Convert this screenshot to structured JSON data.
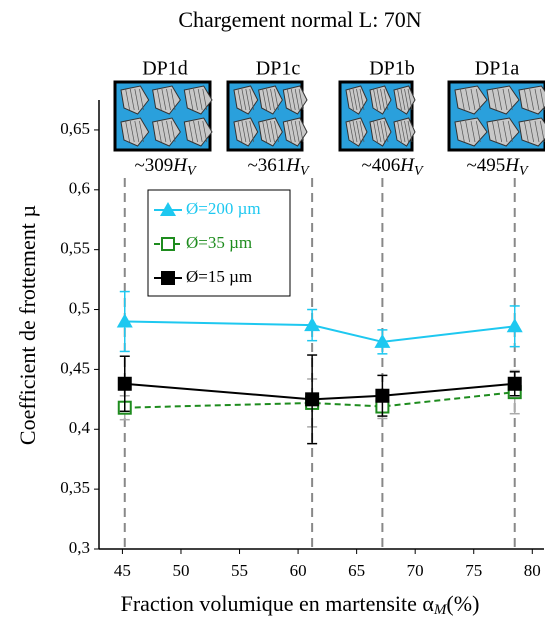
{
  "chart_data": {
    "type": "line",
    "title": "Chargement normal L: 70N",
    "x_label": "Fraction volumique en martensite α",
    "x_label_sub": "M",
    "x_label_suffix": "(%)",
    "y_label": "Coefficient de frottement µ",
    "x": [
      45.2,
      61.2,
      67.2,
      78.5
    ],
    "xlim": [
      43,
      81
    ],
    "xticks": [
      45,
      50,
      55,
      60,
      65,
      70,
      75,
      80
    ],
    "ylim": [
      0.3,
      0.675
    ],
    "yticks": [
      {
        "value": 0.3,
        "label": "0,3"
      },
      {
        "value": 0.35,
        "label": "0,35"
      },
      {
        "value": 0.4,
        "label": "0,4"
      },
      {
        "value": 0.45,
        "label": "0,45"
      },
      {
        "value": 0.5,
        "label": "0,5"
      },
      {
        "value": 0.55,
        "label": "0,55"
      },
      {
        "value": 0.6,
        "label": "0,6"
      },
      {
        "value": 0.65,
        "label": "0,65"
      }
    ],
    "vertical_lines": true,
    "insets": [
      {
        "name": "DP1d",
        "hardness": "~309"
      },
      {
        "name": "DP1c",
        "hardness": "~361"
      },
      {
        "name": "DP1b",
        "hardness": "~406"
      },
      {
        "name": "DP1a",
        "hardness": "~495"
      }
    ],
    "hardness_unit": "H",
    "hardness_unit_sub": "V",
    "series": [
      {
        "name": "Ø=200 µm",
        "color": "#1ec8f0",
        "marker": "triangle",
        "dash": false,
        "values": [
          0.49,
          0.487,
          0.473,
          0.486
        ],
        "errors": [
          0.025,
          0.013,
          0.01,
          0.017
        ]
      },
      {
        "name": "Ø=35 µm",
        "color": "#1e8c1e",
        "marker": "open-square",
        "dash": true,
        "values": [
          0.418,
          0.422,
          0.419,
          0.431
        ],
        "errors": [
          0.01,
          0.02,
          0.01,
          0.018
        ]
      },
      {
        "name": "Ø=15 µm",
        "color": "#000000",
        "marker": "square",
        "dash": false,
        "values": [
          0.438,
          0.425,
          0.428,
          0.438
        ],
        "errors": [
          0.023,
          0.037,
          0.017,
          0.01
        ]
      }
    ]
  }
}
